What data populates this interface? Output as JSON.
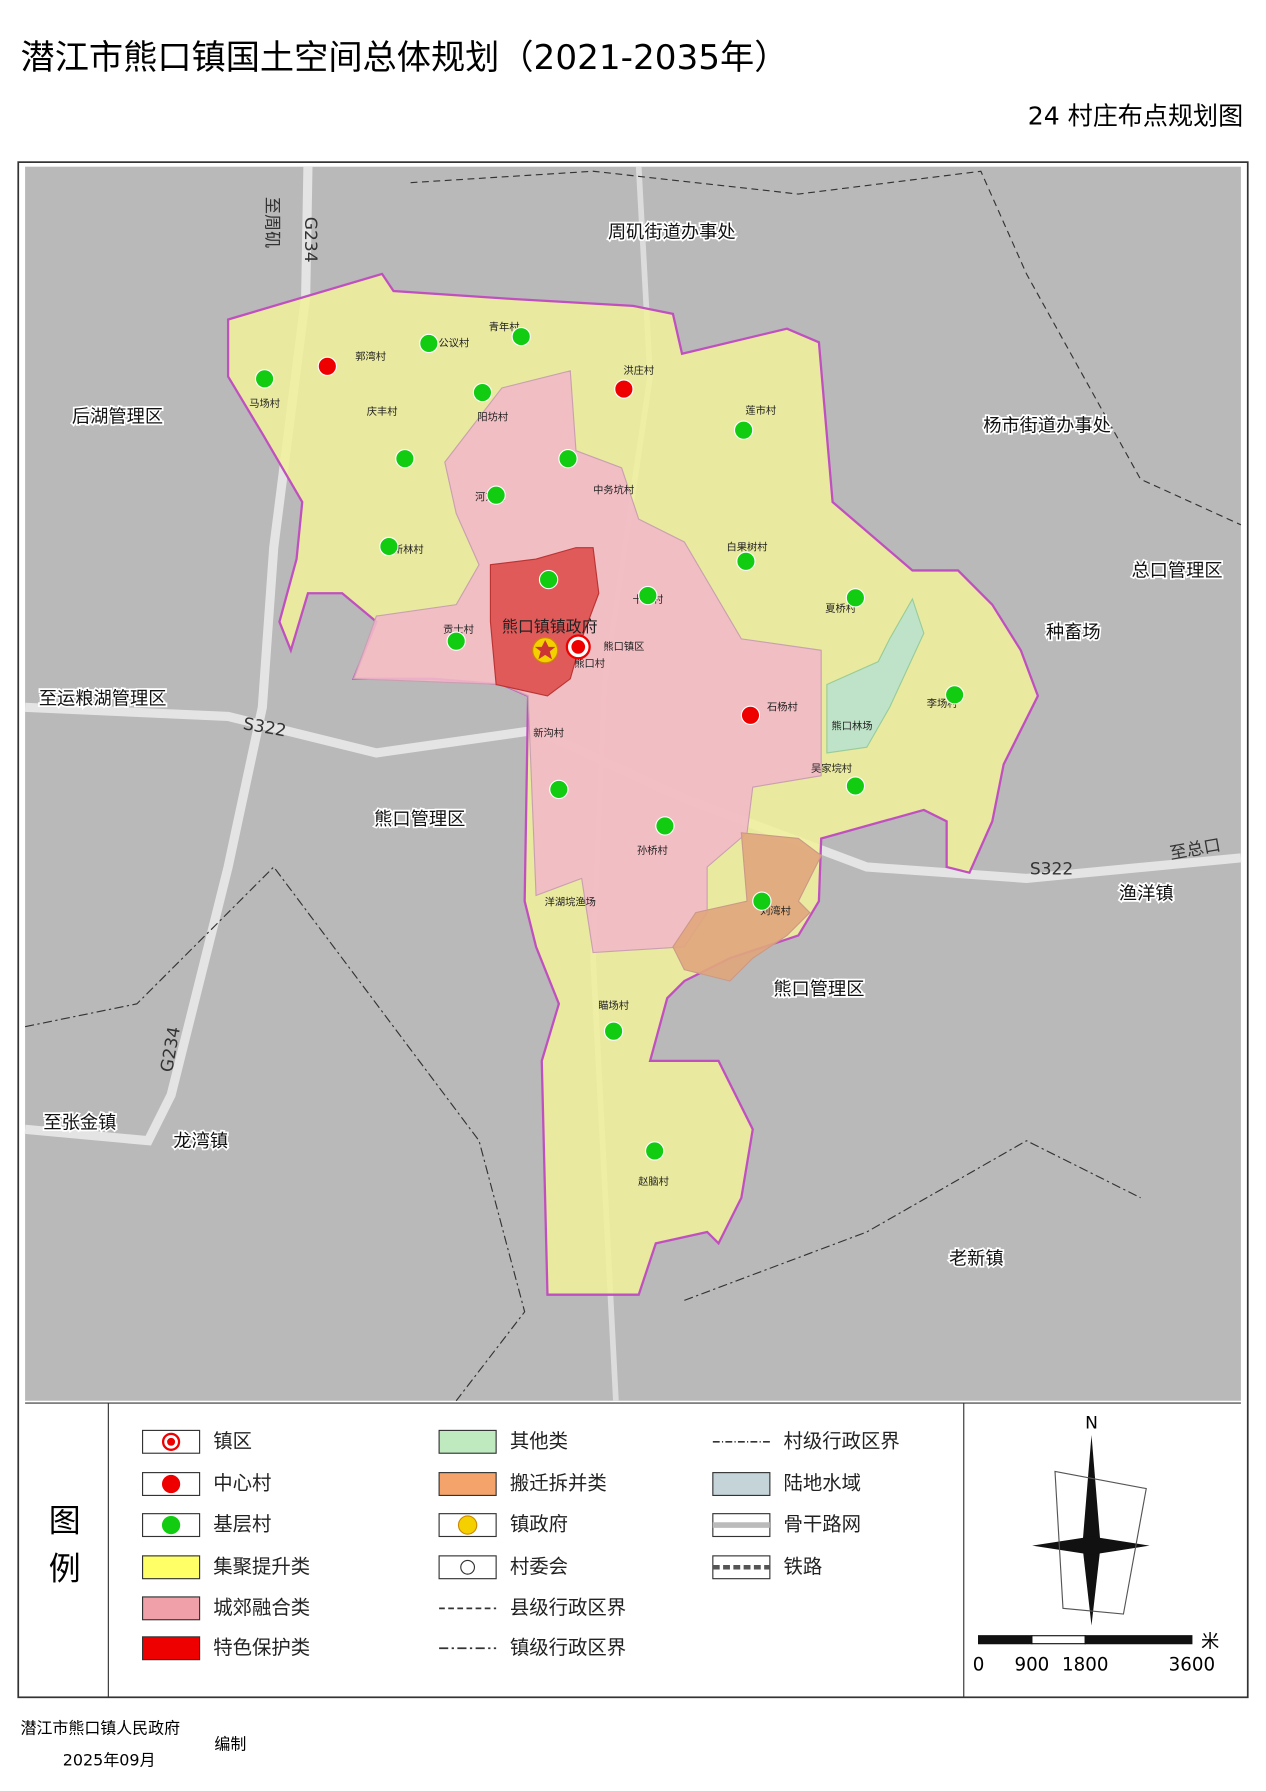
{
  "header": {
    "title": "潜江市熊口镇国土空间总体规划（2021-2035年）",
    "subtitle": "24  村庄布点规划图"
  },
  "map": {
    "regions": [
      "周矶街道办事处",
      "后湖管理区",
      "杨市街道办事处",
      "总口管理区",
      "种畜场",
      "至运粮湖管理区",
      "熊口管理区",
      "熊口管理区",
      "渔洋镇",
      "龙湾镇",
      "老新镇",
      "至张金镇"
    ],
    "roads": [
      "G234",
      "至周矶",
      "S322",
      "S322",
      "G234",
      "至总口"
    ],
    "villages": [
      "郭湾村",
      "马场村",
      "公议村",
      "青年村",
      "洪庄村",
      "庆丰村",
      "阳坊村",
      "莲市村",
      "河东村",
      "中务坑村",
      "新林村",
      "白果树村",
      "十屯村",
      "夏桥村",
      "贡士村",
      "熊口镇镇政府",
      "熊口镇区",
      "熊口村",
      "石杨村",
      "李场村",
      "熊口林场",
      "新沟村",
      "吴家垸村",
      "孙桥村",
      "洋湖垸渔场",
      "刘湾村",
      "瞄场村",
      "赵脑村"
    ]
  },
  "legend": {
    "title": "图例",
    "items": [
      "镇区",
      "中心村",
      "基层村",
      "集聚提升类",
      "城郊融合类",
      "特色保护类",
      "其他类",
      "搬迁拆并类",
      "镇政府",
      "村委会",
      "县级行政区界",
      "镇级行政区界",
      "村级行政区界",
      "陆地水域",
      "骨干路网",
      "铁路"
    ]
  },
  "scale": {
    "unit": "米",
    "ticks": [
      0,
      900,
      1800,
      3600
    ]
  },
  "compass": {
    "north": "N"
  },
  "footer": {
    "org": "潜江市熊口镇人民政府",
    "note": "编制",
    "date": "2025年09月"
  }
}
